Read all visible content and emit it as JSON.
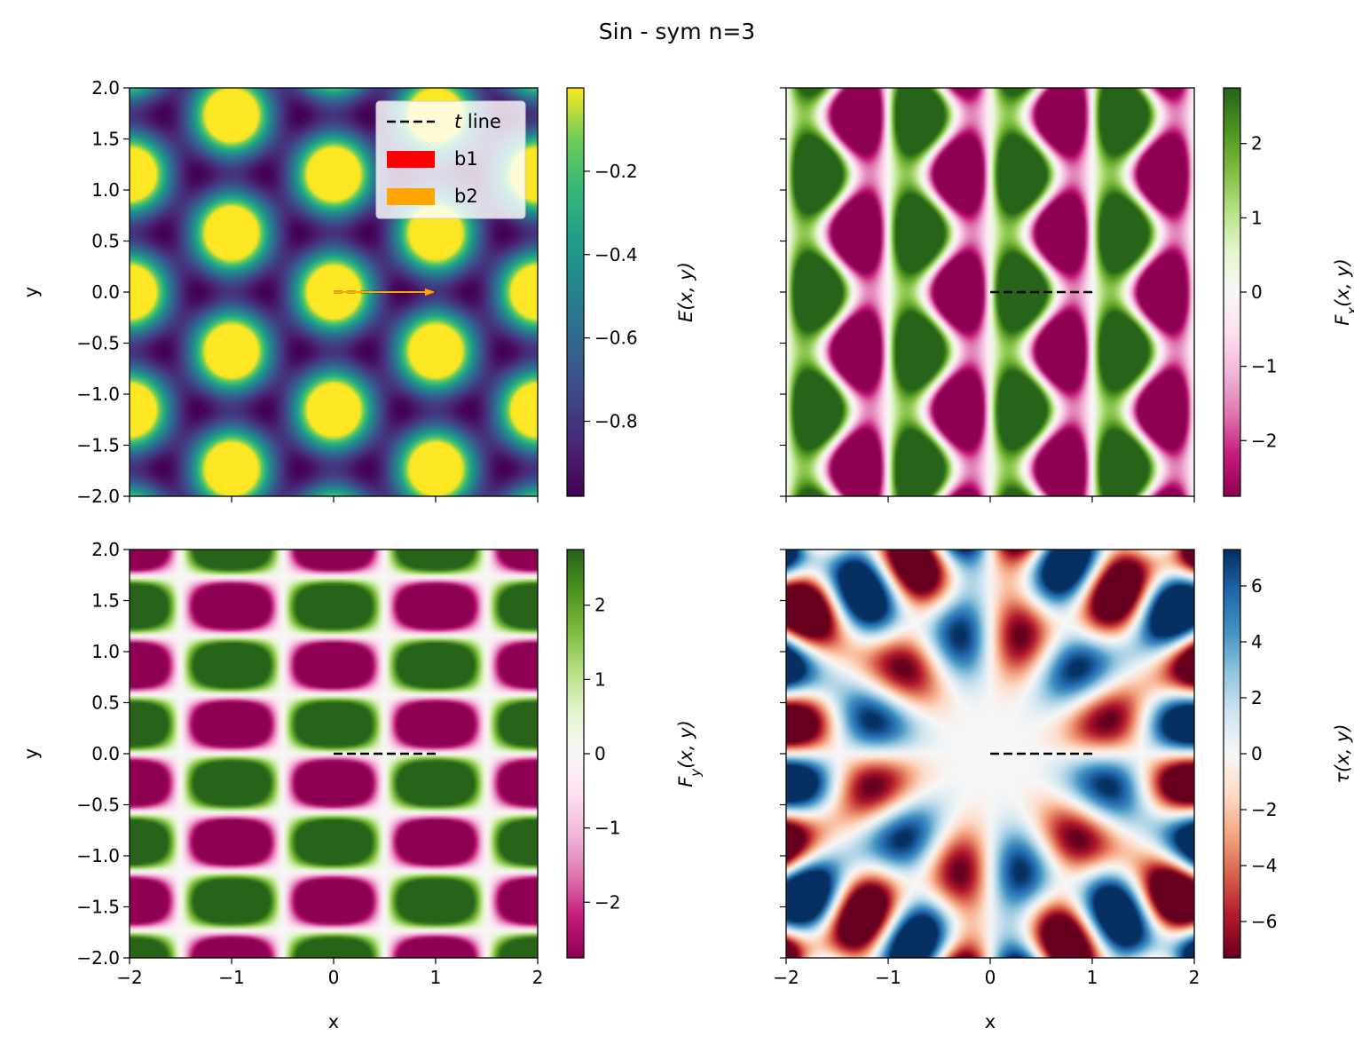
{
  "figure": {
    "suptitle": "Sin - sym n=3"
  },
  "chart_data": [
    {
      "type": "heatmap",
      "panel": "top-left",
      "field": "E(x,y)",
      "colormap": "viridis",
      "xlim": [
        -2,
        2
      ],
      "ylim": [
        -2,
        2
      ],
      "xticks": [
        -2,
        -1,
        0,
        1,
        2
      ],
      "yticks": [
        "2.0",
        "1.5",
        "1.0",
        "0.5",
        "0.0",
        "−0.5",
        "−1.0",
        "−1.5",
        "−2.0"
      ],
      "xlabel": "",
      "ylabel": "y",
      "show_xticklabels": false,
      "show_yticklabels": true,
      "colorbar": {
        "label": "E(x, y)",
        "vmin": -0.98,
        "vmax": 0.0,
        "ticks": [
          -0.8,
          -0.6,
          -0.4,
          -0.2
        ],
        "tick_labels": [
          "−0.8",
          "−0.6",
          "−0.4",
          "−0.2"
        ]
      },
      "overlay": {
        "t_line": {
          "x0": 0,
          "x1": 1,
          "y": 0
        },
        "b1_arrow": {
          "x0": 0,
          "y0": 0,
          "x1": 1,
          "y1": 0
        },
        "b2_arrow": {
          "x0": 0,
          "y0": 0,
          "x1": 1,
          "y1": 0
        }
      },
      "legend": {
        "placement": "top-right",
        "entries": [
          {
            "label_italic": "t",
            "label": " line",
            "kind": "dashed-line",
            "color": "#000000"
          },
          {
            "label": "b1",
            "kind": "patch",
            "color": "#ff0000"
          },
          {
            "label": "b2",
            "kind": "patch",
            "color": "#ffa500"
          }
        ]
      }
    },
    {
      "type": "heatmap",
      "panel": "top-right",
      "field": "F_x(x,y)",
      "colormap": "PiYG",
      "xlim": [
        -2,
        2
      ],
      "ylim": [
        -2,
        2
      ],
      "xticks": [
        -2,
        -1,
        0,
        1,
        2
      ],
      "yticks": [
        "2.0",
        "1.5",
        "1.0",
        "0.5",
        "0.0",
        "−0.5",
        "−1.0",
        "−1.5",
        "−2.0"
      ],
      "xlabel": "",
      "ylabel": "",
      "show_xticklabels": false,
      "show_yticklabels": false,
      "colorbar": {
        "label": "F_x(x, y)",
        "vmin": -2.75,
        "vmax": 2.75,
        "ticks": [
          -2,
          -1,
          0,
          1,
          2
        ],
        "tick_labels": [
          "−2",
          "−1",
          "0",
          "1",
          "2"
        ]
      },
      "overlay": {
        "t_line": {
          "x0": 0,
          "x1": 1,
          "y": 0
        }
      }
    },
    {
      "type": "heatmap",
      "panel": "bottom-left",
      "field": "F_y(x,y)",
      "colormap": "PiYG",
      "xlim": [
        -2,
        2
      ],
      "ylim": [
        -2,
        2
      ],
      "xticks": [
        -2,
        -1,
        0,
        1,
        2
      ],
      "xtick_labels": [
        "−2",
        "−1",
        "0",
        "1",
        "2"
      ],
      "yticks": [
        "2.0",
        "1.5",
        "1.0",
        "0.5",
        "0.0",
        "−0.5",
        "−1.0",
        "−1.5",
        "−2.0"
      ],
      "xlabel": "x",
      "ylabel": "y",
      "show_xticklabels": true,
      "show_yticklabels": true,
      "colorbar": {
        "label": "F_y(x, y)",
        "vmin": -2.75,
        "vmax": 2.75,
        "ticks": [
          -2,
          -1,
          0,
          1,
          2
        ],
        "tick_labels": [
          "−2",
          "−1",
          "0",
          "1",
          "2"
        ]
      },
      "overlay": {
        "t_line": {
          "x0": 0,
          "x1": 1,
          "y": 0
        }
      }
    },
    {
      "type": "heatmap",
      "panel": "bottom-right",
      "field": "tau(x,y)",
      "colormap": "RdBu",
      "xlim": [
        -2,
        2
      ],
      "ylim": [
        -2,
        2
      ],
      "xticks": [
        -2,
        -1,
        0,
        1,
        2
      ],
      "xtick_labels": [
        "−2",
        "−1",
        "0",
        "1",
        "2"
      ],
      "yticks": [
        "2.0",
        "1.5",
        "1.0",
        "0.5",
        "0.0",
        "−0.5",
        "−1.0",
        "−1.5",
        "−2.0"
      ],
      "xlabel": "x",
      "ylabel": "",
      "show_xticklabels": true,
      "show_yticklabels": false,
      "colorbar": {
        "label": "τ(x, y)",
        "vmin": -7.3,
        "vmax": 7.3,
        "ticks": [
          -6,
          -4,
          -2,
          0,
          2,
          4,
          6
        ],
        "tick_labels": [
          "−6",
          "−4",
          "−2",
          "0",
          "2",
          "4",
          "6"
        ]
      },
      "overlay": {
        "t_line": {
          "x0": 0,
          "x1": 1,
          "y": 0
        }
      }
    }
  ]
}
